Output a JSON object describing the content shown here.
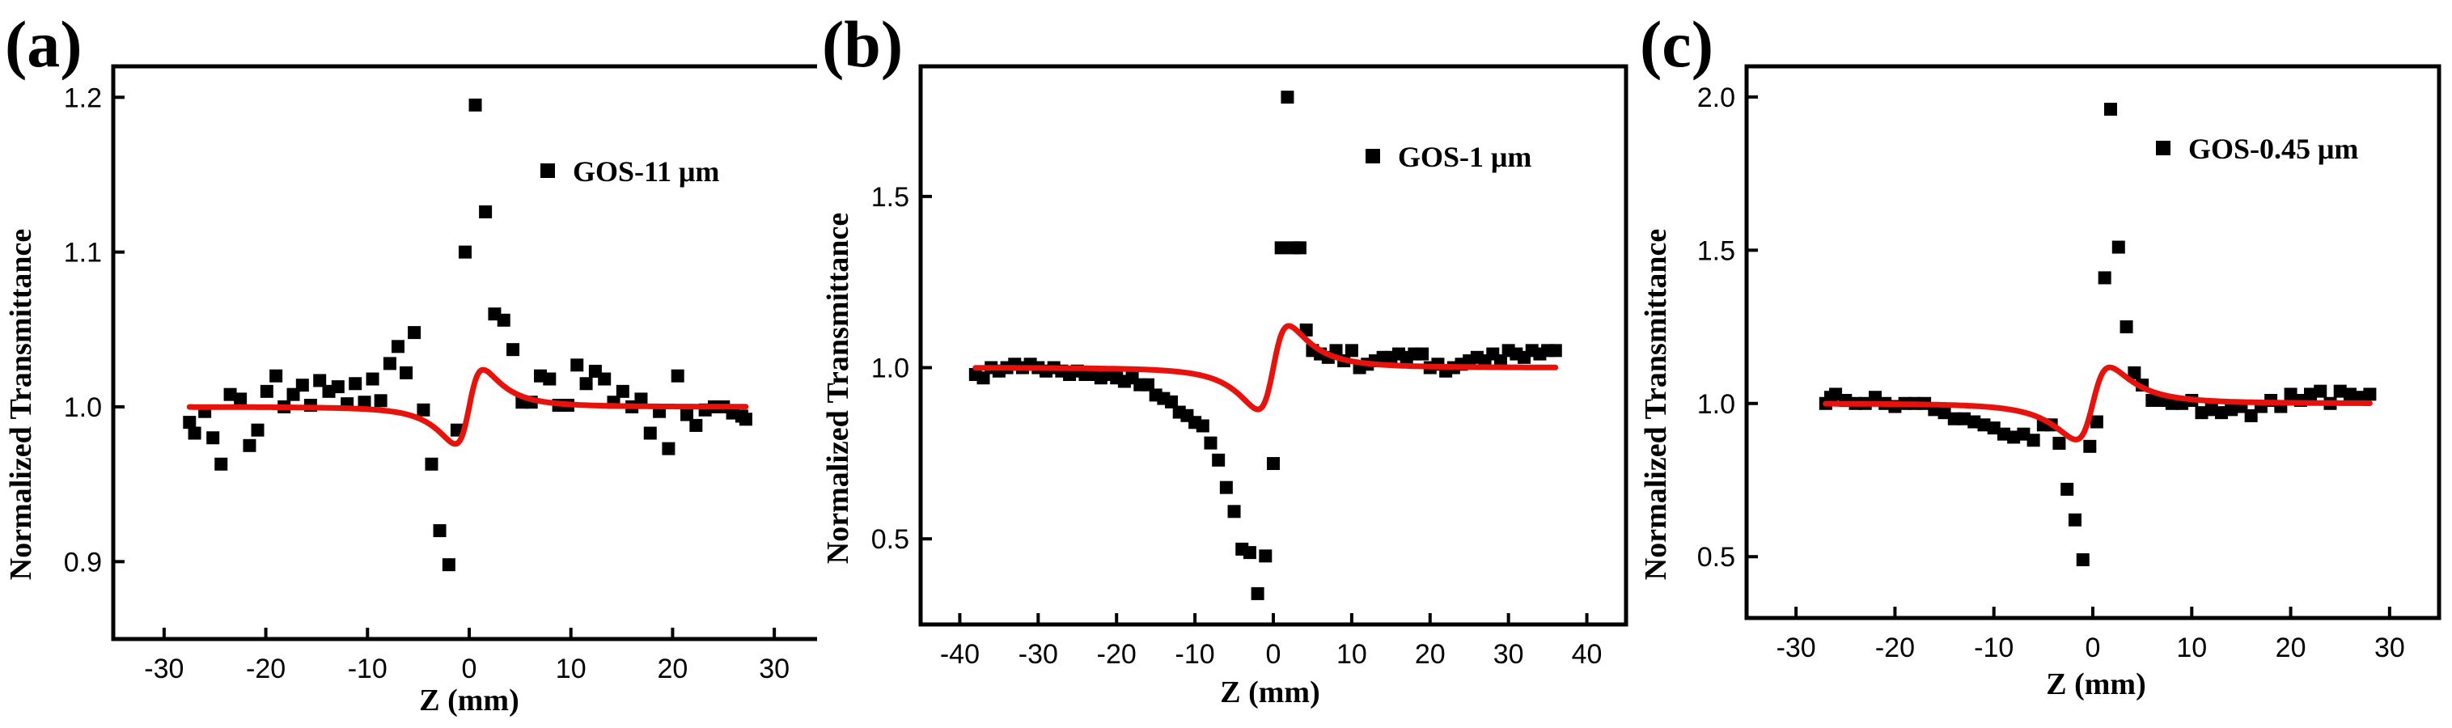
{
  "colors": {
    "fit": "#e8120c",
    "marker": "#000000",
    "frame": "#000000"
  },
  "chart_data": [
    {
      "type": "scatter",
      "panel_label": "(a)",
      "legend": "GOS-11 μm",
      "legend_location": "top-right",
      "xlabel": "Z (mm)",
      "ylabel": "Normalized Transmittance",
      "xlim": [
        -35,
        35
      ],
      "ylim": [
        0.85,
        1.22
      ],
      "xticks": [
        -30,
        -20,
        -10,
        0,
        10,
        20,
        30
      ],
      "xtick_labels": [
        "-30",
        "-20",
        "-10",
        "0",
        "10",
        "20",
        "30"
      ],
      "yticks": [
        0.9,
        1.0,
        1.1,
        1.2
      ],
      "ytick_labels": [
        "0.9",
        "1.0",
        "1.1",
        "1.2"
      ],
      "fit": {
        "amplitude": 0.118,
        "z0": 1.6
      },
      "points": [
        [
          -27.5,
          0.99
        ],
        [
          -27,
          0.983
        ],
        [
          -26,
          0.997
        ],
        [
          -25.2,
          0.98
        ],
        [
          -24.4,
          0.963
        ],
        [
          -23.5,
          1.008
        ],
        [
          -22.5,
          1.005
        ],
        [
          -21.6,
          0.975
        ],
        [
          -20.8,
          0.985
        ],
        [
          -19.9,
          1.01
        ],
        [
          -19,
          1.02
        ],
        [
          -18.2,
          1.0
        ],
        [
          -17.3,
          1.008
        ],
        [
          -16.4,
          1.014
        ],
        [
          -15.6,
          1.001
        ],
        [
          -14.7,
          1.017
        ],
        [
          -13.8,
          1.01
        ],
        [
          -12.9,
          1.013
        ],
        [
          -12,
          1.002
        ],
        [
          -11.2,
          1.015
        ],
        [
          -10.3,
          1.003
        ],
        [
          -9.5,
          1.018
        ],
        [
          -8.7,
          1.004
        ],
        [
          -7.8,
          1.028
        ],
        [
          -7,
          1.039
        ],
        [
          -6.2,
          1.022
        ],
        [
          -5.4,
          1.048
        ],
        [
          -4.5,
          0.998
        ],
        [
          -3.7,
          0.963
        ],
        [
          -2.9,
          0.92
        ],
        [
          -2,
          0.898
        ],
        [
          -1.2,
          0.985
        ],
        [
          -0.4,
          1.1
        ],
        [
          0.6,
          1.195
        ],
        [
          1.6,
          1.126
        ],
        [
          2.5,
          1.06
        ],
        [
          3.4,
          1.056
        ],
        [
          4.3,
          1.037
        ],
        [
          5.2,
          1.003
        ],
        [
          6.1,
          1.003
        ],
        [
          7,
          1.02
        ],
        [
          7.9,
          1.018
        ],
        [
          8.8,
          1.001
        ],
        [
          9.7,
          1.001
        ],
        [
          10.6,
          1.027
        ],
        [
          11.5,
          1.015
        ],
        [
          12.4,
          1.023
        ],
        [
          13.3,
          1.018
        ],
        [
          14.2,
          1.003
        ],
        [
          15.1,
          1.01
        ],
        [
          16,
          1.0
        ],
        [
          16.9,
          1.005
        ],
        [
          17.8,
          0.983
        ],
        [
          18.7,
          0.997
        ],
        [
          19.6,
          0.973
        ],
        [
          20.5,
          1.02
        ],
        [
          21.4,
          0.995
        ],
        [
          22.3,
          0.988
        ],
        [
          23.2,
          0.998
        ],
        [
          24.1,
          1.0
        ],
        [
          25,
          1.0
        ],
        [
          25.9,
          0.996
        ],
        [
          26.8,
          0.994
        ],
        [
          27.2,
          0.992
        ]
      ]
    },
    {
      "type": "scatter",
      "panel_label": "(b)",
      "legend": "GOS-1 μm",
      "legend_location": "top-right",
      "xlabel": "Z (mm)",
      "ylabel": "Normalized Transmittance",
      "xlim": [
        -45,
        45
      ],
      "ylim": [
        0.25,
        1.88
      ],
      "xticks": [
        -40,
        -30,
        -20,
        -10,
        0,
        10,
        20,
        30,
        40
      ],
      "xtick_labels": [
        "-40",
        "-30",
        "-20",
        "-10",
        "0",
        "10",
        "20",
        "30",
        "40"
      ],
      "yticks": [
        0.5,
        1.0,
        1.5
      ],
      "ytick_labels": [
        "0.5",
        "1.0",
        "1.5"
      ],
      "fit": {
        "amplitude": 0.6,
        "z0": 2.3
      },
      "points": [
        [
          -38,
          0.98
        ],
        [
          -37,
          0.97
        ],
        [
          -36,
          1.0
        ],
        [
          -35,
          0.99
        ],
        [
          -34,
          1.0
        ],
        [
          -33,
          1.01
        ],
        [
          -32,
          1.0
        ],
        [
          -31,
          1.01
        ],
        [
          -30,
          1.0
        ],
        [
          -29,
          0.99
        ],
        [
          -28,
          1.0
        ],
        [
          -27,
          0.99
        ],
        [
          -26,
          0.98
        ],
        [
          -25,
          0.99
        ],
        [
          -24,
          0.98
        ],
        [
          -23,
          0.98
        ],
        [
          -22,
          0.97
        ],
        [
          -21,
          0.98
        ],
        [
          -20,
          0.97
        ],
        [
          -19,
          0.96
        ],
        [
          -18,
          0.97
        ],
        [
          -17,
          0.95
        ],
        [
          -16,
          0.95
        ],
        [
          -15,
          0.92
        ],
        [
          -14,
          0.91
        ],
        [
          -13,
          0.9
        ],
        [
          -12,
          0.87
        ],
        [
          -11,
          0.86
        ],
        [
          -10,
          0.84
        ],
        [
          -9,
          0.83
        ],
        [
          -8,
          0.78
        ],
        [
          -7,
          0.73
        ],
        [
          -6,
          0.65
        ],
        [
          -5,
          0.58
        ],
        [
          -4,
          0.47
        ],
        [
          -3,
          0.46
        ],
        [
          -2,
          0.34
        ],
        [
          -1,
          0.45
        ],
        [
          0,
          0.72
        ],
        [
          1,
          1.35
        ],
        [
          1.8,
          1.79
        ],
        [
          2.6,
          1.35
        ],
        [
          3.4,
          1.35
        ],
        [
          4.2,
          1.11
        ],
        [
          5,
          1.05
        ],
        [
          6,
          1.04
        ],
        [
          7,
          1.03
        ],
        [
          8,
          1.05
        ],
        [
          9,
          1.02
        ],
        [
          10,
          1.05
        ],
        [
          11,
          1.0
        ],
        [
          12,
          1.01
        ],
        [
          13,
          1.02
        ],
        [
          14,
          1.03
        ],
        [
          15,
          1.03
        ],
        [
          16,
          1.04
        ],
        [
          17,
          1.03
        ],
        [
          18,
          1.04
        ],
        [
          19,
          1.04
        ],
        [
          20,
          1.0
        ],
        [
          21,
          1.01
        ],
        [
          22,
          0.99
        ],
        [
          23,
          1.0
        ],
        [
          24,
          1.01
        ],
        [
          25,
          1.02
        ],
        [
          26,
          1.03
        ],
        [
          27,
          1.02
        ],
        [
          28,
          1.04
        ],
        [
          29,
          1.02
        ],
        [
          30,
          1.05
        ],
        [
          31,
          1.04
        ],
        [
          32,
          1.03
        ],
        [
          33,
          1.05
        ],
        [
          34,
          1.04
        ],
        [
          35,
          1.05
        ],
        [
          36,
          1.05
        ]
      ]
    },
    {
      "type": "scatter",
      "panel_label": "(c)",
      "legend": "GOS-0.45 μm",
      "legend_location": "top-right",
      "xlabel": "Z (mm)",
      "ylabel": "Normalized Transmittance",
      "xlim": [
        -35,
        35
      ],
      "ylim": [
        0.3,
        2.1
      ],
      "xticks": [
        -30,
        -20,
        -10,
        0,
        10,
        20,
        30
      ],
      "xtick_labels": [
        "-30",
        "-20",
        "-10",
        "0",
        "10",
        "20",
        "30"
      ],
      "yticks": [
        0.5,
        1.0,
        1.5,
        2.0
      ],
      "ytick_labels": [
        "0.5",
        "1.0",
        "1.5",
        "2.0"
      ],
      "fit": {
        "amplitude": 0.58,
        "z0": 2.0
      },
      "points": [
        [
          -27,
          1.0
        ],
        [
          -26.5,
          1.02
        ],
        [
          -26,
          1.03
        ],
        [
          -25,
          1.01
        ],
        [
          -24,
          1.0
        ],
        [
          -23,
          1.0
        ],
        [
          -22,
          1.02
        ],
        [
          -21,
          1.0
        ],
        [
          -20,
          0.99
        ],
        [
          -19,
          1.0
        ],
        [
          -18,
          1.0
        ],
        [
          -17,
          1.0
        ],
        [
          -16,
          0.98
        ],
        [
          -15,
          0.97
        ],
        [
          -14,
          0.95
        ],
        [
          -13,
          0.95
        ],
        [
          -12,
          0.94
        ],
        [
          -11,
          0.93
        ],
        [
          -10,
          0.92
        ],
        [
          -9,
          0.9
        ],
        [
          -8,
          0.89
        ],
        [
          -7,
          0.9
        ],
        [
          -6,
          0.88
        ],
        [
          -5,
          0.93
        ],
        [
          -4.2,
          0.93
        ],
        [
          -3.4,
          0.87
        ],
        [
          -2.6,
          0.72
        ],
        [
          -1.8,
          0.62
        ],
        [
          -1,
          0.49
        ],
        [
          -0.3,
          0.86
        ],
        [
          0.4,
          0.94
        ],
        [
          1.2,
          1.41
        ],
        [
          1.8,
          1.96
        ],
        [
          2.6,
          1.51
        ],
        [
          3.4,
          1.25
        ],
        [
          4.2,
          1.1
        ],
        [
          5,
          1.06
        ],
        [
          6,
          1.01
        ],
        [
          7,
          1.01
        ],
        [
          8,
          1.0
        ],
        [
          9,
          1.0
        ],
        [
          10,
          1.01
        ],
        [
          11,
          0.97
        ],
        [
          12,
          0.98
        ],
        [
          13,
          0.97
        ],
        [
          14,
          0.98
        ],
        [
          15,
          0.99
        ],
        [
          16,
          0.96
        ],
        [
          17,
          0.99
        ],
        [
          18,
          1.01
        ],
        [
          19,
          0.99
        ],
        [
          20,
          1.03
        ],
        [
          21,
          1.01
        ],
        [
          22,
          1.03
        ],
        [
          23,
          1.04
        ],
        [
          24,
          1.0
        ],
        [
          25,
          1.04
        ],
        [
          26,
          1.03
        ],
        [
          27,
          1.02
        ],
        [
          28,
          1.03
        ]
      ]
    }
  ]
}
